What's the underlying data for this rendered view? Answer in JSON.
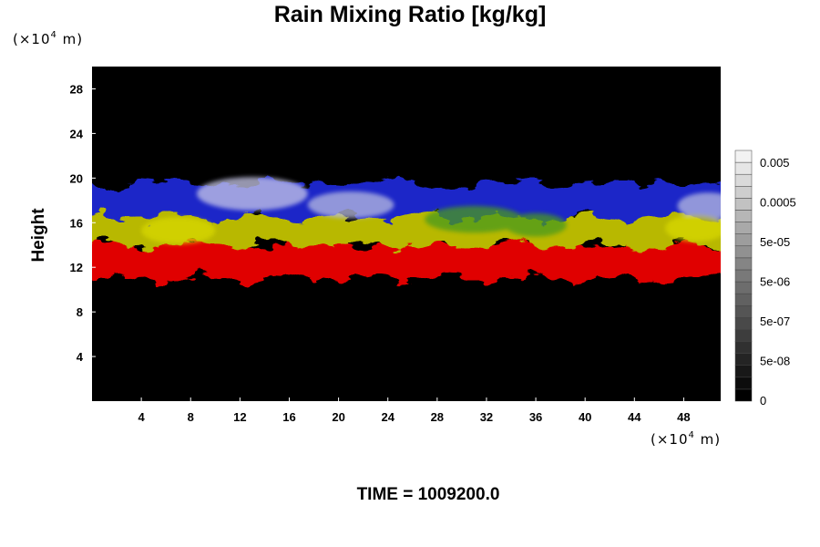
{
  "chart_data": {
    "type": "heatmap",
    "title": "Rain Mixing Ratio [kg/kg]",
    "ylabel": "Height",
    "x_unit": {
      "prefix": "(×10",
      "exp": "4",
      "suffix": " m)"
    },
    "y_unit": {
      "prefix": "(×10",
      "exp": "4",
      "suffix": " m)"
    },
    "xlim": [
      0,
      51
    ],
    "ylim": [
      0,
      30
    ],
    "x_ticks": [
      "4",
      "8",
      "12",
      "16",
      "20",
      "24",
      "28",
      "32",
      "36",
      "40",
      "44",
      "48"
    ],
    "y_ticks": [
      "4",
      "8",
      "12",
      "16",
      "20",
      "24",
      "28"
    ],
    "colorbar": {
      "tick_labels": [
        "0.005",
        "0.0005",
        "5e-05",
        "5e-06",
        "5e-07",
        "5e-08",
        "0"
      ],
      "levels": 21,
      "colors": {
        "low": "#000000",
        "high": "#f2f2f2"
      }
    },
    "bands": [
      {
        "name": "red",
        "y_range": [
          11,
          14.2
        ],
        "color": "#e00000"
      },
      {
        "name": "yellow",
        "y_range": [
          14,
          17
        ],
        "color": "#b8b800"
      },
      {
        "name": "blue",
        "y_range": [
          16.5,
          19.5
        ],
        "color": "#1c28c8"
      }
    ],
    "background_color": "#000000"
  },
  "footer": {
    "time_label": "TIME = 1009200.0"
  }
}
